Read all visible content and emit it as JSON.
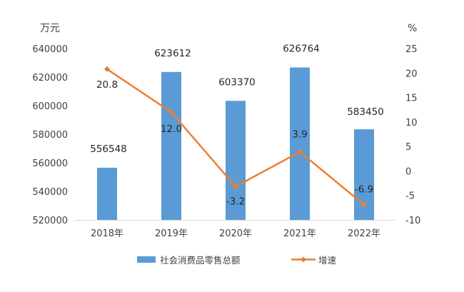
{
  "chart_data": {
    "type": "bar+line",
    "categories": [
      "2018年",
      "2019年",
      "2020年",
      "2021年",
      "2022年"
    ],
    "series": [
      {
        "name": "社会消费品零售总额",
        "kind": "bar",
        "axis": "left",
        "values": [
          556548,
          623612,
          603370,
          626764,
          583450
        ],
        "labels": [
          "556548",
          "623612",
          "603370",
          "626764",
          "583450"
        ]
      },
      {
        "name": "增速",
        "kind": "line",
        "axis": "right",
        "values": [
          20.8,
          12.0,
          -3.2,
          3.9,
          -6.9
        ],
        "labels": [
          "20.8",
          "12.0",
          "-3.2",
          "3.9",
          "-6.9"
        ]
      }
    ],
    "left_axis": {
      "unit": "万元",
      "ylim": [
        520000,
        640000
      ],
      "ticks": [
        520000,
        540000,
        560000,
        580000,
        600000,
        620000,
        640000
      ],
      "tick_labels": [
        "520000",
        "540000",
        "560000",
        "580000",
        "600000",
        "620000",
        "640000"
      ]
    },
    "right_axis": {
      "unit": "%",
      "ylim": [
        -10,
        25
      ],
      "ticks": [
        -10,
        -5,
        0,
        5,
        10,
        15,
        20,
        25
      ],
      "tick_labels": [
        "-10",
        "-5",
        "0",
        "5",
        "10",
        "15",
        "20",
        "25"
      ]
    },
    "grid": false,
    "legend_position": "bottom",
    "colors": {
      "bar": "#5B9BD5",
      "line": "#ED7D31"
    }
  }
}
